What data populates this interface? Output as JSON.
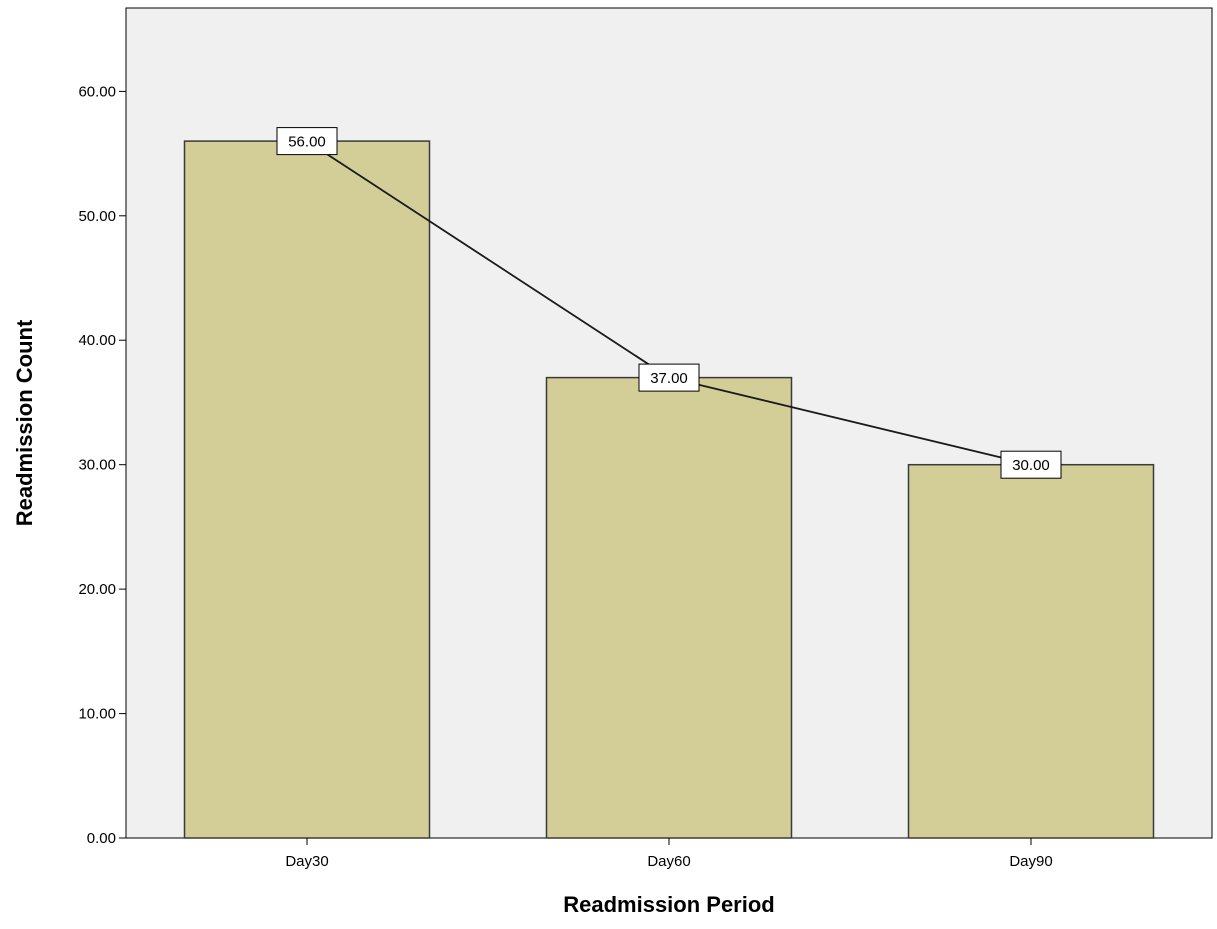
{
  "chart_data": {
    "type": "bar",
    "title": "",
    "xlabel": "Readmission Period",
    "ylabel": "Readmission Count",
    "categories": [
      "Day30",
      "Day60",
      "Day90"
    ],
    "series": [
      {
        "values": [
          56.0,
          37.0,
          30.0
        ],
        "data_labels": [
          "56.00",
          "37.00",
          "30.00"
        ],
        "overlay": "line"
      }
    ],
    "ylim": [
      0,
      66.7
    ],
    "yticks": [
      0,
      10,
      20,
      30,
      40,
      50,
      60
    ],
    "ytick_labels": [
      "0.00",
      "10.00",
      "20.00",
      "30.00",
      "40.00",
      "50.00",
      "60.00"
    ],
    "grid": false,
    "legend": "none",
    "colors": {
      "plot_background": "#f0f0f0",
      "bar_fill": "#d3ce97",
      "bar_stroke": "#3a3a3a",
      "line": "#1a1a1a",
      "label_box_fill": "#ffffff",
      "label_box_stroke": "#000000",
      "axis": "#000000"
    }
  }
}
